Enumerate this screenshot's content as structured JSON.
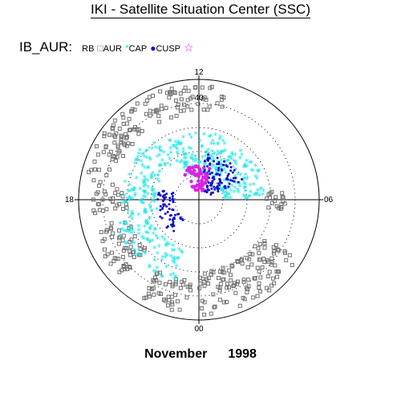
{
  "title": "IKI - Satellite Situation Center (SSC)",
  "footer": {
    "month": "November",
    "year": "1998"
  },
  "chart_data": {
    "type": "scatter",
    "polar": true,
    "legend_prefix": "IB_AUR:",
    "legend": [
      {
        "name": "RB",
        "marker": "",
        "color": "#000000"
      },
      {
        "name": "AUR",
        "marker": "square",
        "color": "#707070"
      },
      {
        "name": "CAP",
        "marker": "asterisk",
        "color": "#22e5e5"
      },
      {
        "name": "CUSP",
        "marker": "dot",
        "color": "#1010d0"
      },
      {
        "name": "",
        "marker": "star",
        "color": "#e020e0"
      }
    ],
    "mlt_labels": {
      "top": "12",
      "left": "18",
      "right": "06",
      "bottom": "00"
    },
    "ring_labels": [
      "40"
    ],
    "colatitude_max_deg": 50,
    "rings_deg": [
      10,
      20,
      30,
      40,
      50
    ],
    "series": [
      {
        "name": "AUR",
        "marker": "square",
        "color": "#707070",
        "colat_range": [
          33,
          49
        ],
        "arcs": [
          [
            11.0,
            17.5,
            36,
            48
          ],
          [
            0.0,
            4.0,
            30,
            48
          ],
          [
            5.5,
            6.5,
            28,
            36
          ],
          [
            17.5,
            18.5,
            30,
            44
          ],
          [
            19.0,
            21.0,
            30,
            46
          ],
          [
            22.0,
            23.8,
            34,
            48
          ]
        ]
      },
      {
        "name": "CAP",
        "marker": "asterisk",
        "color": "#22e5e5",
        "arcs": [
          [
            6.0,
            14.0,
            10,
            28
          ],
          [
            14.0,
            19.0,
            18,
            32
          ],
          [
            19.0,
            23.0,
            22,
            36
          ]
        ]
      },
      {
        "name": "CUSP",
        "marker": "dot",
        "color": "#1010d0",
        "arcs": [
          [
            7.5,
            11.5,
            4,
            20
          ],
          [
            17.0,
            21.5,
            10,
            18
          ]
        ]
      },
      {
        "name": "",
        "marker": "star",
        "color": "#e020e0",
        "arcs": [
          [
            10.5,
            14.0,
            4,
            14
          ]
        ]
      }
    ]
  }
}
